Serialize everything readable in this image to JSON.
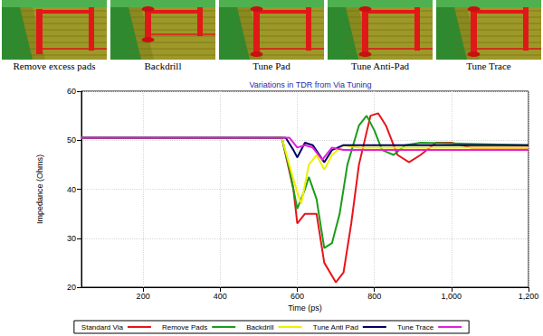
{
  "panels": [
    {
      "caption": "Remove excess pads"
    },
    {
      "caption": "Backdrill"
    },
    {
      "caption": "Tune Pad"
    },
    {
      "caption": "Tune Anti-Pad"
    },
    {
      "caption": "Tune Trace"
    }
  ],
  "chart_data": {
    "type": "line",
    "title": "Variations in TDR from Via Tuning",
    "x_label": "Time (ps)",
    "y_label": "Impedance (Ohms)",
    "xlim": [
      40,
      1200
    ],
    "ylim": [
      20,
      60
    ],
    "xticks": [
      200,
      400,
      600,
      800,
      {
        "value": 1000,
        "label": "1,000"
      },
      {
        "value": 1200,
        "label": "1,200"
      }
    ],
    "yticks": [
      20,
      30,
      40,
      50,
      60
    ],
    "grid": true,
    "legend": "bottom",
    "series": [
      {
        "name": "Standard Via",
        "color": "#e8141b",
        "x": [
          40,
          560,
          590,
          600,
          620,
          650,
          670,
          700,
          720,
          740,
          760,
          790,
          810,
          830,
          860,
          890,
          920,
          960,
          1000,
          1050,
          1200
        ],
        "values": [
          50.5,
          50.5,
          40,
          33,
          35,
          35,
          25,
          21,
          23,
          33,
          45,
          55,
          55.5,
          53,
          47,
          45.5,
          47,
          49.5,
          49.5,
          48.5,
          48.5
        ]
      },
      {
        "name": "Remove Pads",
        "color": "#1a9c1a",
        "x": [
          40,
          560,
          580,
          600,
          620,
          630,
          650,
          670,
          690,
          710,
          730,
          760,
          780,
          800,
          820,
          850,
          880,
          920,
          1200
        ],
        "values": [
          50.5,
          50.5,
          44,
          36,
          40,
          42.5,
          38,
          28,
          29,
          35,
          45,
          53,
          55,
          52,
          48,
          47,
          49,
          49.5,
          49
        ]
      },
      {
        "name": "Backdrill",
        "color": "#f0f000",
        "x": [
          40,
          560,
          590,
          610,
          630,
          650,
          670,
          690,
          720,
          760,
          1200
        ],
        "values": [
          50.5,
          50.5,
          42,
          37,
          45,
          47,
          44,
          47,
          49,
          48.5,
          48.5
        ]
      },
      {
        "name": "Tune Anti Pad",
        "color": "#000066",
        "x": [
          40,
          570,
          590,
          600,
          620,
          640,
          670,
          690,
          720,
          800,
          1200
        ],
        "values": [
          50.5,
          50.5,
          48,
          46.5,
          49.5,
          49,
          45.5,
          48,
          49,
          49,
          49
        ]
      },
      {
        "name": "Tune Trace",
        "color": "#e020e0",
        "x": [
          40,
          580,
          600,
          620,
          640,
          665,
          690,
          720,
          1200
        ],
        "values": [
          50.5,
          50.5,
          48.5,
          49,
          48.5,
          46,
          48.5,
          48,
          48
        ]
      }
    ]
  }
}
